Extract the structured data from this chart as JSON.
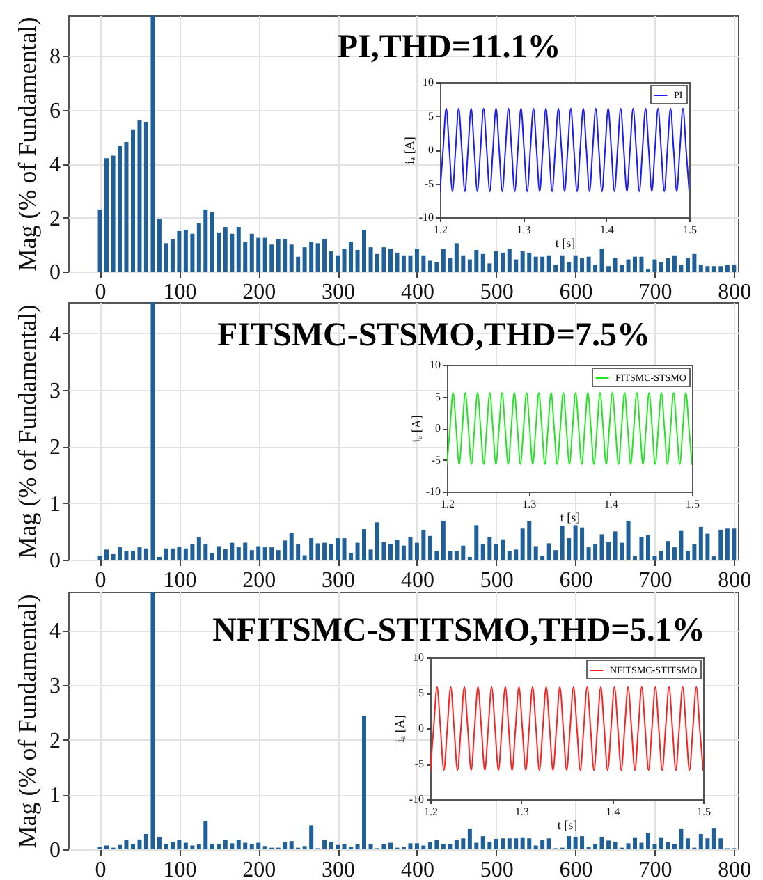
{
  "chart_data": [
    {
      "type": "bar",
      "title": "PI,THD=11.1%",
      "ylabel": "Mag (% of Fundamental)",
      "color": "#1f5f9a",
      "xlim": [
        -40,
        805
      ],
      "xticks": [
        0,
        100,
        200,
        300,
        400,
        500,
        600,
        700,
        800
      ],
      "ylim": [
        0,
        9.5
      ],
      "yticks": [
        0,
        2,
        4,
        6,
        8
      ],
      "grid": true,
      "x": [
        0,
        8.3,
        16.7,
        25,
        33.3,
        41.7,
        50,
        58.3,
        66.7,
        75,
        83.3,
        91.7,
        100,
        108.3,
        116.7,
        125,
        133.3,
        141.7,
        150,
        158.3,
        166.7,
        175,
        183.3,
        191.7,
        200,
        208.3,
        216.7,
        225,
        233.3,
        241.7,
        250,
        258.3,
        266.7,
        275,
        283.3,
        291.7,
        300,
        308.3,
        316.7,
        325,
        333.3,
        341.7,
        350,
        358.3,
        366.7,
        375,
        383.3,
        391.7,
        400,
        408.3,
        416.7,
        425,
        433.3,
        441.7,
        450,
        458.3,
        466.7,
        475,
        483.3,
        491.7,
        500,
        508.3,
        516.7,
        525,
        533.3,
        541.7,
        550,
        558.3,
        566.7,
        575,
        583.3,
        591.7,
        600,
        608.3,
        616.7,
        625,
        633.3,
        641.7,
        650,
        658.3,
        666.7,
        675,
        683.3,
        691.7,
        700,
        708.3,
        716.7,
        725,
        733.3,
        741.7,
        750,
        758.3,
        766.7,
        775,
        783.3,
        791.7,
        800
      ],
      "values": [
        2.3,
        4.2,
        4.3,
        4.65,
        4.8,
        5.25,
        5.6,
        5.55,
        9.5,
        1.95,
        1.05,
        1.2,
        1.5,
        1.55,
        1.4,
        1.8,
        2.3,
        2.2,
        1.45,
        1.65,
        1.4,
        1.65,
        1.1,
        1.4,
        1.25,
        1.25,
        1.0,
        1.2,
        1.2,
        1.0,
        0.55,
        0.9,
        1.1,
        1.05,
        1.2,
        0.75,
        0.6,
        0.85,
        1.1,
        0.8,
        1.55,
        0.9,
        0.65,
        0.9,
        0.85,
        0.7,
        0.6,
        0.6,
        0.85,
        0.6,
        0.4,
        0.35,
        0.85,
        0.5,
        1.05,
        0.6,
        0.45,
        0.8,
        0.65,
        0.3,
        0.75,
        0.7,
        0.85,
        0.45,
        0.75,
        0.7,
        0.55,
        0.55,
        0.6,
        0.25,
        0.6,
        0.35,
        0.6,
        0.5,
        0.55,
        0.25,
        0.85,
        0.2,
        0.5,
        0.25,
        0.45,
        0.55,
        0.55,
        0.1,
        0.45,
        0.35,
        0.5,
        0.6,
        0.25,
        0.5,
        0.65,
        0.25,
        0.2,
        0.2,
        0.2,
        0.25,
        0.25
      ]
    },
    {
      "type": "line",
      "xlabel": "t [s]",
      "ylabel": "iₐ [A]",
      "xlim": [
        1.2,
        1.5
      ],
      "xticks": [
        1.2,
        1.3,
        1.4,
        1.5
      ],
      "ylim": [
        -10,
        10
      ],
      "yticks": [
        -10,
        -5,
        0,
        5,
        10
      ],
      "legend": "top right",
      "x": [
        1.2,
        1.20375,
        1.2075,
        1.21125,
        1.215,
        1.21875,
        1.2225,
        1.22625,
        1.23,
        1.23375,
        1.2375,
        1.24125,
        1.245,
        1.24875,
        1.2525,
        1.25625,
        1.26,
        1.26375,
        1.2675,
        1.27125,
        1.275,
        1.27875,
        1.2825,
        1.28625,
        1.29,
        1.29375,
        1.2975,
        1.30125,
        1.305,
        1.30875,
        1.3125,
        1.31625,
        1.32,
        1.32375,
        1.3275,
        1.33125,
        1.335,
        1.33875,
        1.3425,
        1.34625,
        1.35,
        1.35375,
        1.3575,
        1.36125,
        1.365,
        1.36875,
        1.3725,
        1.37625,
        1.38,
        1.38375,
        1.3875,
        1.39125,
        1.395,
        1.39875,
        1.4025,
        1.40625,
        1.41,
        1.41375,
        1.4175,
        1.42125,
        1.425,
        1.42875,
        1.4325,
        1.43625,
        1.44,
        1.44375,
        1.4475,
        1.45125,
        1.455,
        1.45875,
        1.4625,
        1.46625,
        1.47,
        1.47375,
        1.4775,
        1.48125,
        1.485,
        1.48875,
        1.4925,
        1.49625,
        1.5
      ],
      "series": [
        {
          "name": "PI",
          "color": "#1a1aff",
          "values": [
            -6.2,
            0,
            6.1,
            0,
            -6.2,
            0,
            6.1,
            0,
            -6.2,
            0,
            6.1,
            0,
            -6.2,
            0,
            6.1,
            0,
            -6.2,
            0,
            6.1,
            0,
            -6.2,
            0,
            6.1,
            0,
            -6.2,
            0,
            6.1,
            0,
            -6.2,
            0,
            6.1,
            0,
            -6.2,
            0,
            6.1,
            0,
            -6.2,
            0,
            6.1,
            0,
            -6.2,
            0,
            6.1,
            0,
            -6.2,
            0,
            6.1,
            0,
            -6.2,
            0,
            6.1,
            0,
            -6.2,
            0,
            6.1,
            0,
            -6.2,
            0,
            6.1,
            0,
            -6.2,
            0,
            6.1,
            0,
            -6.2,
            0,
            6.1,
            0,
            -6.2,
            0,
            6.1,
            0,
            -6.2,
            0,
            6.1,
            0,
            -6.2,
            0,
            6.1,
            0,
            -6.2
          ]
        }
      ]
    },
    {
      "type": "bar",
      "title": "FITSMC-STSMO,THD=7.5%",
      "ylabel": "Mag (% of Fundamental)",
      "color": "#1f5f9a",
      "xlim": [
        -40,
        805
      ],
      "xticks": [
        0,
        100,
        200,
        300,
        400,
        500,
        600,
        700,
        800
      ],
      "ylim": [
        0,
        4.55
      ],
      "yticks": [
        0,
        1,
        2,
        3,
        4
      ],
      "grid": true,
      "x": [
        0,
        8.3,
        16.7,
        25,
        33.3,
        41.7,
        50,
        58.3,
        66.7,
        75,
        83.3,
        91.7,
        100,
        108.3,
        116.7,
        125,
        133.3,
        141.7,
        150,
        158.3,
        166.7,
        175,
        183.3,
        191.7,
        200,
        208.3,
        216.7,
        225,
        233.3,
        241.7,
        250,
        258.3,
        266.7,
        275,
        283.3,
        291.7,
        300,
        308.3,
        316.7,
        325,
        333.3,
        341.7,
        350,
        358.3,
        366.7,
        375,
        383.3,
        391.7,
        400,
        408.3,
        416.7,
        425,
        433.3,
        441.7,
        450,
        458.3,
        466.7,
        475,
        483.3,
        491.7,
        500,
        508.3,
        516.7,
        525,
        533.3,
        541.7,
        550,
        558.3,
        566.7,
        575,
        583.3,
        591.7,
        600,
        608.3,
        616.7,
        625,
        633.3,
        641.7,
        650,
        658.3,
        666.7,
        675,
        683.3,
        691.7,
        700,
        708.3,
        716.7,
        725,
        733.3,
        741.7,
        750,
        758.3,
        766.7,
        775,
        783.3,
        791.7,
        800
      ],
      "values": [
        0.07,
        0.18,
        0.1,
        0.22,
        0.15,
        0.16,
        0.22,
        0.2,
        4.55,
        0.05,
        0.2,
        0.2,
        0.23,
        0.2,
        0.27,
        0.4,
        0.27,
        0.12,
        0.24,
        0.19,
        0.3,
        0.22,
        0.3,
        0.17,
        0.24,
        0.22,
        0.22,
        0.17,
        0.34,
        0.47,
        0.27,
        0.08,
        0.38,
        0.29,
        0.3,
        0.28,
        0.38,
        0.38,
        0.12,
        0.3,
        0.54,
        0.18,
        0.66,
        0.31,
        0.28,
        0.35,
        0.25,
        0.4,
        0.3,
        0.53,
        0.42,
        0.15,
        0.69,
        0.15,
        0.15,
        0.25,
        0.05,
        0.61,
        0.27,
        0.4,
        0.28,
        0.36,
        0.15,
        0.18,
        0.55,
        0.68,
        0.24,
        0.07,
        0.29,
        0.17,
        0.6,
        0.38,
        0.61,
        0.57,
        0.22,
        0.27,
        0.45,
        0.32,
        0.5,
        0.3,
        0.69,
        0.07,
        0.4,
        0.44,
        0.07,
        0.16,
        0.33,
        0.22,
        0.52,
        0.15,
        0.27,
        0.58,
        0.46,
        0.06,
        0.53,
        0.55,
        0.55
      ]
    },
    {
      "type": "line",
      "xlabel": "t [s]",
      "ylabel": "iₐ [A]",
      "xlim": [
        1.2,
        1.5
      ],
      "xticks": [
        1.2,
        1.3,
        1.4,
        1.5
      ],
      "ylim": [
        -10,
        10
      ],
      "yticks": [
        -10,
        -5,
        0,
        5,
        10
      ],
      "legend": "top right",
      "x": [
        1.2,
        1.20375,
        1.2075,
        1.21125,
        1.215,
        1.21875,
        1.2225,
        1.22625,
        1.23,
        1.23375,
        1.2375,
        1.24125,
        1.245,
        1.24875,
        1.2525,
        1.25625,
        1.26,
        1.26375,
        1.2675,
        1.27125,
        1.275,
        1.27875,
        1.2825,
        1.28625,
        1.29,
        1.29375,
        1.2975,
        1.30125,
        1.305,
        1.30875,
        1.3125,
        1.31625,
        1.32,
        1.32375,
        1.3275,
        1.33125,
        1.335,
        1.33875,
        1.3425,
        1.34625,
        1.35,
        1.35375,
        1.3575,
        1.36125,
        1.365,
        1.36875,
        1.3725,
        1.37625,
        1.38,
        1.38375,
        1.3875,
        1.39125,
        1.395,
        1.39875,
        1.4025,
        1.40625,
        1.41,
        1.41375,
        1.4175,
        1.42125,
        1.425,
        1.42875,
        1.4325,
        1.43625,
        1.44,
        1.44375,
        1.4475,
        1.45125,
        1.455,
        1.45875,
        1.4625,
        1.46625,
        1.47,
        1.47375,
        1.4775,
        1.48125,
        1.485,
        1.48875,
        1.4925,
        1.49625,
        1.5
      ],
      "series": [
        {
          "name": "FITSMC-STSMO",
          "color": "#22e622",
          "values": [
            -5.7,
            0,
            5.6,
            0,
            -5.7,
            0,
            5.6,
            0,
            -5.7,
            0,
            5.6,
            0,
            -5.7,
            0,
            5.6,
            0,
            -5.7,
            0,
            5.6,
            0,
            -5.7,
            0,
            5.6,
            0,
            -5.7,
            0,
            5.6,
            0,
            -5.7,
            0,
            5.6,
            0,
            -5.7,
            0,
            5.6,
            0,
            -5.7,
            0,
            5.6,
            0,
            -5.7,
            0,
            5.6,
            0,
            -5.7,
            0,
            5.6,
            0,
            -5.7,
            0,
            5.6,
            0,
            -5.7,
            0,
            5.6,
            0,
            -5.7,
            0,
            5.6,
            0,
            -5.7,
            0,
            5.6,
            0,
            -5.7,
            0,
            5.6,
            0,
            -5.7,
            0,
            5.6,
            0,
            -5.7,
            0,
            5.6,
            0,
            -5.7,
            0,
            5.6,
            0,
            -5.7
          ]
        }
      ]
    },
    {
      "type": "bar",
      "title": "NFITSMC-STITSMO,THD=5.1%",
      "ylabel": "Mag (% of Fundamental)",
      "color": "#1f5f9a",
      "xlim": [
        -40,
        805
      ],
      "xticks": [
        0,
        100,
        200,
        300,
        400,
        500,
        600,
        700,
        800
      ],
      "ylim": [
        0,
        4.7
      ],
      "yticks": [
        0,
        1,
        2,
        3,
        4
      ],
      "grid": true,
      "x": [
        0,
        8.3,
        16.7,
        25,
        33.3,
        41.7,
        50,
        58.3,
        66.7,
        75,
        83.3,
        91.7,
        100,
        108.3,
        116.7,
        125,
        133.3,
        141.7,
        150,
        158.3,
        166.7,
        175,
        183.3,
        191.7,
        200,
        208.3,
        216.7,
        225,
        233.3,
        241.7,
        250,
        258.3,
        266.7,
        275,
        283.3,
        291.7,
        300,
        308.3,
        316.7,
        325,
        333.3,
        341.7,
        350,
        358.3,
        366.7,
        375,
        383.3,
        391.7,
        400,
        408.3,
        416.7,
        425,
        433.3,
        441.7,
        450,
        458.3,
        466.7,
        475,
        483.3,
        491.7,
        500,
        508.3,
        516.7,
        525,
        533.3,
        541.7,
        550,
        558.3,
        566.7,
        575,
        583.3,
        591.7,
        600,
        608.3,
        616.7,
        625,
        633.3,
        641.7,
        650,
        658.3,
        666.7,
        675,
        683.3,
        691.7,
        700,
        708.3,
        716.7,
        725,
        733.3,
        741.7,
        750,
        758.3,
        766.7,
        775,
        783.3,
        791.7,
        800
      ],
      "values": [
        0.05,
        0.07,
        0.03,
        0.08,
        0.17,
        0.1,
        0.18,
        0.28,
        4.7,
        0.23,
        0.1,
        0.14,
        0.17,
        0.12,
        0.07,
        0.09,
        0.52,
        0.1,
        0.1,
        0.17,
        0.11,
        0.17,
        0.12,
        0.1,
        0.12,
        0.06,
        0.03,
        0.03,
        0.13,
        0.15,
        0.03,
        0.06,
        0.44,
        0.02,
        0.17,
        0.14,
        0.08,
        0.09,
        0.04,
        0.09,
        2.44,
        0.1,
        0.02,
        0.1,
        0.12,
        0.03,
        0.04,
        0.11,
        0.11,
        0.07,
        0.13,
        0.17,
        0.1,
        0.1,
        0.17,
        0.2,
        0.37,
        0.12,
        0.24,
        0.14,
        0.19,
        0.2,
        0.2,
        0.2,
        0.22,
        0.2,
        0.07,
        0.17,
        0.2,
        0.02,
        0.03,
        0.24,
        0.23,
        0.24,
        0.04,
        0.1,
        0.23,
        0.16,
        0.14,
        0.03,
        0.11,
        0.22,
        0.12,
        0.3,
        0.09,
        0.22,
        0.13,
        0.1,
        0.37,
        0.2,
        0.03,
        0.28,
        0.2,
        0.38,
        0.2,
        0.02,
        0.02
      ]
    },
    {
      "type": "line",
      "xlabel": "t [s]",
      "ylabel": "iₐ [A]",
      "xlim": [
        1.2,
        1.5
      ],
      "xticks": [
        1.2,
        1.3,
        1.4,
        1.5
      ],
      "ylim": [
        -10,
        10
      ],
      "yticks": [
        -10,
        -5,
        0,
        5,
        10
      ],
      "legend": "top right",
      "x": [
        1.2,
        1.20375,
        1.2075,
        1.21125,
        1.215,
        1.21875,
        1.2225,
        1.22625,
        1.23,
        1.23375,
        1.2375,
        1.24125,
        1.245,
        1.24875,
        1.2525,
        1.25625,
        1.26,
        1.26375,
        1.2675,
        1.27125,
        1.275,
        1.27875,
        1.2825,
        1.28625,
        1.29,
        1.29375,
        1.2975,
        1.30125,
        1.305,
        1.30875,
        1.3125,
        1.31625,
        1.32,
        1.32375,
        1.3275,
        1.33125,
        1.335,
        1.33875,
        1.3425,
        1.34625,
        1.35,
        1.35375,
        1.3575,
        1.36125,
        1.365,
        1.36875,
        1.3725,
        1.37625,
        1.38,
        1.38375,
        1.3875,
        1.39125,
        1.395,
        1.39875,
        1.4025,
        1.40625,
        1.41,
        1.41375,
        1.4175,
        1.42125,
        1.425,
        1.42875,
        1.4325,
        1.43625,
        1.44,
        1.44375,
        1.4475,
        1.45125,
        1.455,
        1.45875,
        1.4625,
        1.46625,
        1.47,
        1.47375,
        1.4775,
        1.48125,
        1.485,
        1.48875,
        1.4925,
        1.49625,
        1.5
      ],
      "series": [
        {
          "name": "NFITSMC-STITSMO",
          "color": "#ff2020",
          "values": [
            -5.9,
            0,
            5.8,
            0,
            -5.9,
            0,
            5.8,
            0,
            -5.9,
            0,
            5.8,
            0,
            -5.9,
            0,
            5.8,
            0,
            -5.9,
            0,
            5.8,
            0,
            -5.9,
            0,
            5.8,
            0,
            -5.9,
            0,
            5.8,
            0,
            -5.9,
            0,
            5.8,
            0,
            -5.9,
            0,
            5.8,
            0,
            -5.9,
            0,
            5.8,
            0,
            -5.9,
            0,
            5.8,
            0,
            -5.9,
            0,
            5.8,
            0,
            -5.9,
            0,
            5.8,
            0,
            -5.9,
            0,
            5.8,
            0,
            -5.9,
            0,
            5.8,
            0,
            -5.9,
            0,
            5.8,
            0,
            -5.9,
            0,
            5.8,
            0,
            -5.9,
            0,
            5.8,
            0,
            -5.9,
            0,
            5.8,
            0,
            -5.9,
            0,
            5.8,
            0,
            -5.9
          ]
        }
      ]
    }
  ]
}
